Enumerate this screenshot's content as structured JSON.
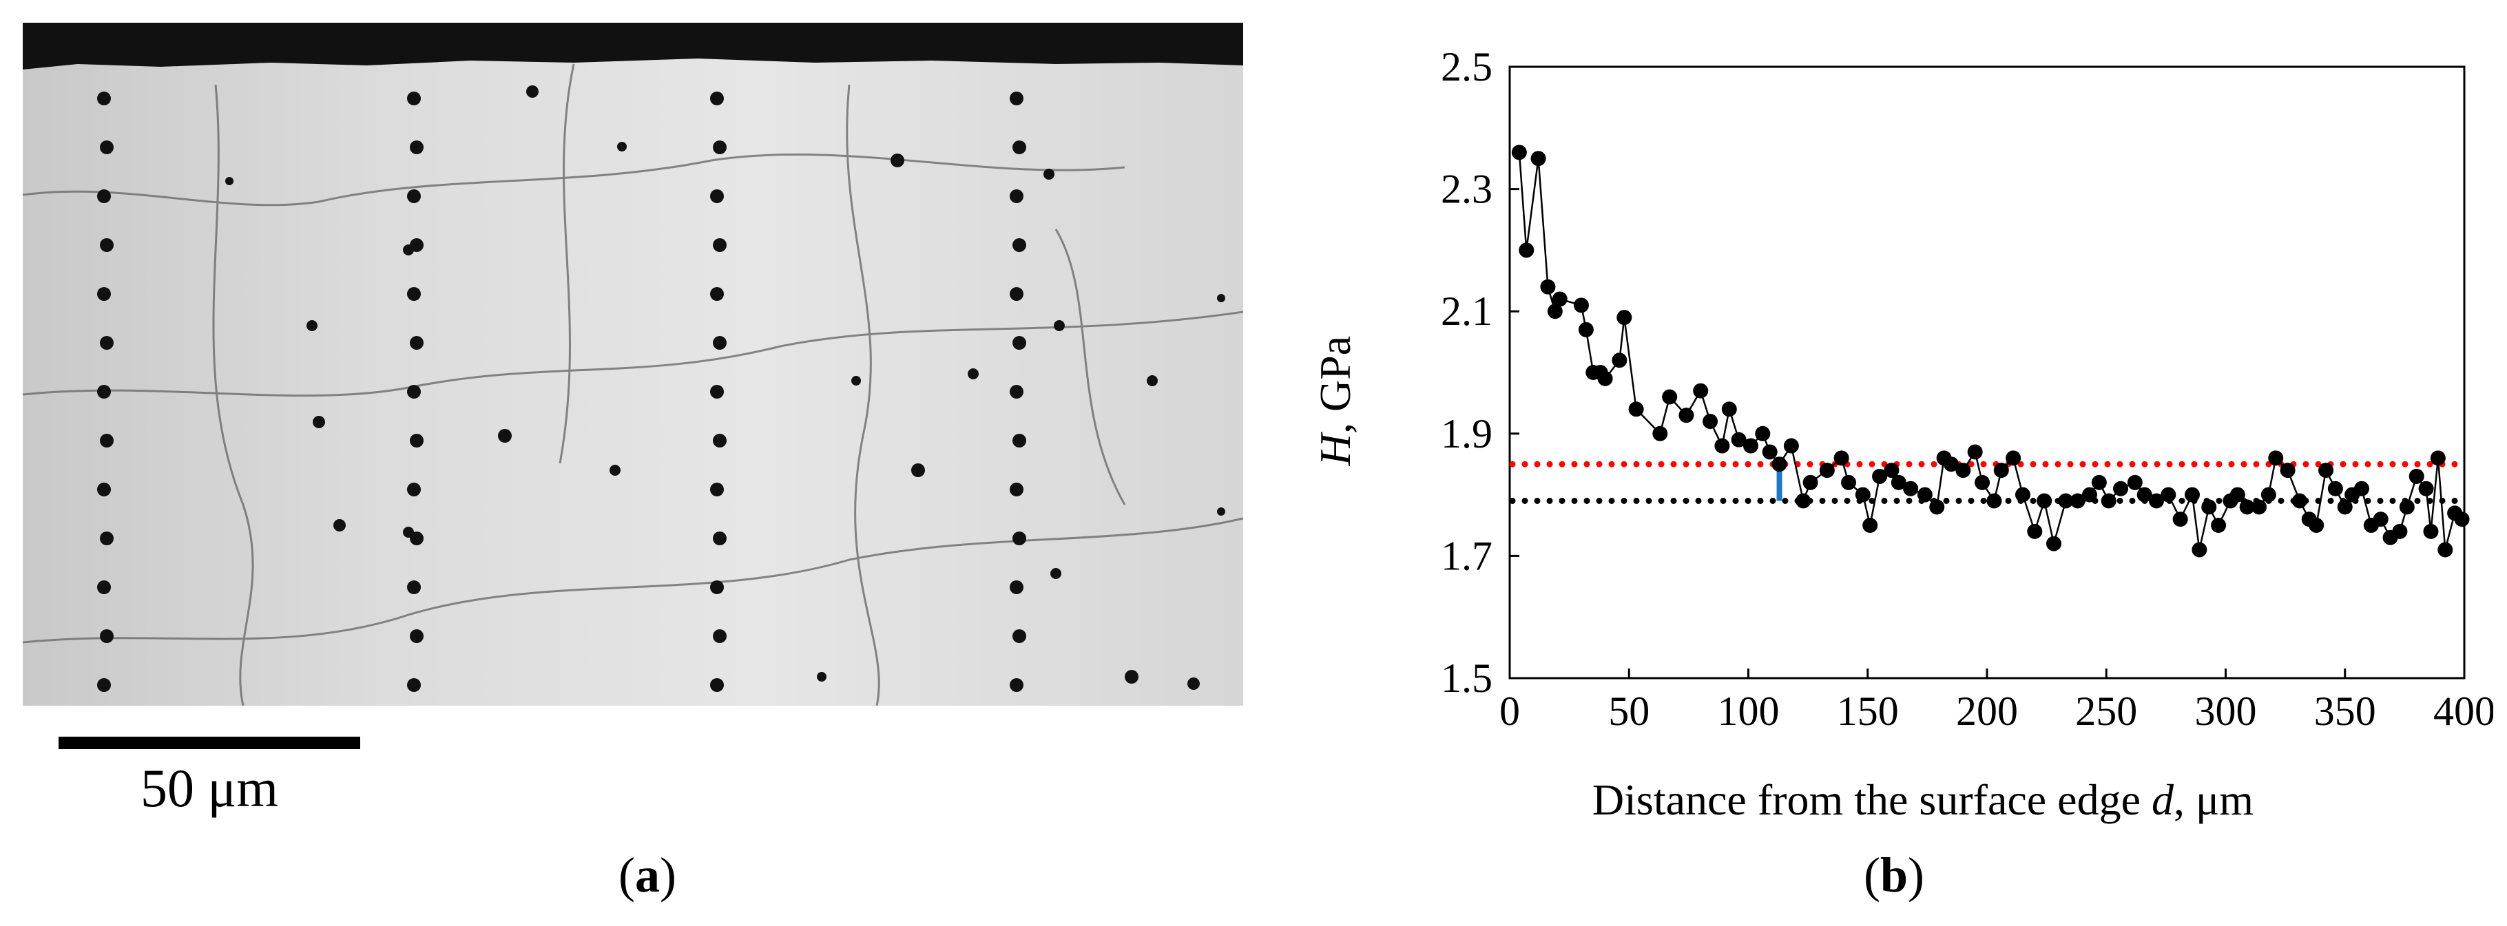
{
  "panel_a": {
    "scale_bar_label": "50 μm",
    "caption_open": "(",
    "caption_letter": "a",
    "caption_close": ")"
  },
  "panel_b": {
    "caption_open": "(",
    "caption_letter": "b",
    "caption_close": ")"
  },
  "colors": {
    "series": "#000000",
    "red_level": "#ff0000",
    "black_level": "#000000",
    "marker": "#1f77c4"
  },
  "chart_data": {
    "type": "line",
    "xlabel_prefix": "Distance from the surface edge ",
    "xlabel_var": "d",
    "xlabel_unit": ", μm",
    "ylabel_var": "H",
    "ylabel_unit": ", GPa",
    "xlim": [
      0,
      400
    ],
    "ylim": [
      1.5,
      2.5
    ],
    "xticks": [
      0,
      50,
      100,
      150,
      200,
      250,
      300,
      350,
      400
    ],
    "yticks": [
      "1.5",
      "1.7",
      "1.9",
      "2.1",
      "2.3",
      "2.5"
    ],
    "grid": false,
    "reference_lines": [
      {
        "y": 1.85,
        "color": "red",
        "style": "dotted"
      },
      {
        "y": 1.79,
        "color": "black",
        "style": "dotted"
      }
    ],
    "vertical_marker": {
      "x": 113,
      "y_from": 1.79,
      "y_to": 1.85,
      "color": "blue"
    },
    "series": [
      {
        "x": [
          4,
          7,
          12,
          16,
          19,
          21,
          30,
          32,
          35,
          38,
          40,
          46,
          48,
          53,
          63,
          67,
          74,
          80,
          84,
          89,
          92,
          96,
          101,
          106,
          109,
          113,
          118,
          123,
          126,
          133,
          139,
          142,
          148,
          151,
          155,
          160,
          163,
          168,
          174,
          179,
          182,
          185,
          190,
          195,
          198,
          203,
          206,
          211,
          215,
          220,
          224,
          228,
          233,
          238,
          243,
          247,
          251,
          256,
          262,
          266,
          271,
          276,
          281,
          286,
          289,
          293,
          297,
          302,
          305,
          309,
          314,
          318,
          321,
          326,
          331,
          335,
          338,
          342,
          346,
          350,
          353,
          357,
          361,
          365,
          369,
          373,
          376,
          380,
          384,
          386,
          389,
          392,
          396,
          399
        ],
        "y": [
          2.36,
          2.2,
          2.35,
          2.14,
          2.1,
          2.12,
          2.11,
          2.07,
          2.0,
          2.0,
          1.99,
          2.02,
          2.09,
          1.94,
          1.9,
          1.96,
          1.93,
          1.97,
          1.92,
          1.88,
          1.94,
          1.89,
          1.88,
          1.9,
          1.87,
          1.85,
          1.88,
          1.79,
          1.82,
          1.84,
          1.86,
          1.82,
          1.8,
          1.75,
          1.83,
          1.84,
          1.82,
          1.81,
          1.8,
          1.78,
          1.86,
          1.85,
          1.84,
          1.87,
          1.82,
          1.79,
          1.84,
          1.86,
          1.8,
          1.74,
          1.79,
          1.72,
          1.79,
          1.79,
          1.8,
          1.82,
          1.79,
          1.81,
          1.82,
          1.8,
          1.79,
          1.8,
          1.76,
          1.8,
          1.71,
          1.78,
          1.75,
          1.79,
          1.8,
          1.78,
          1.78,
          1.8,
          1.86,
          1.84,
          1.79,
          1.76,
          1.75,
          1.84,
          1.81,
          1.78,
          1.8,
          1.81,
          1.75,
          1.76,
          1.73,
          1.74,
          1.78,
          1.83,
          1.81,
          1.74,
          1.86,
          1.71,
          1.77,
          1.76
        ]
      }
    ]
  }
}
